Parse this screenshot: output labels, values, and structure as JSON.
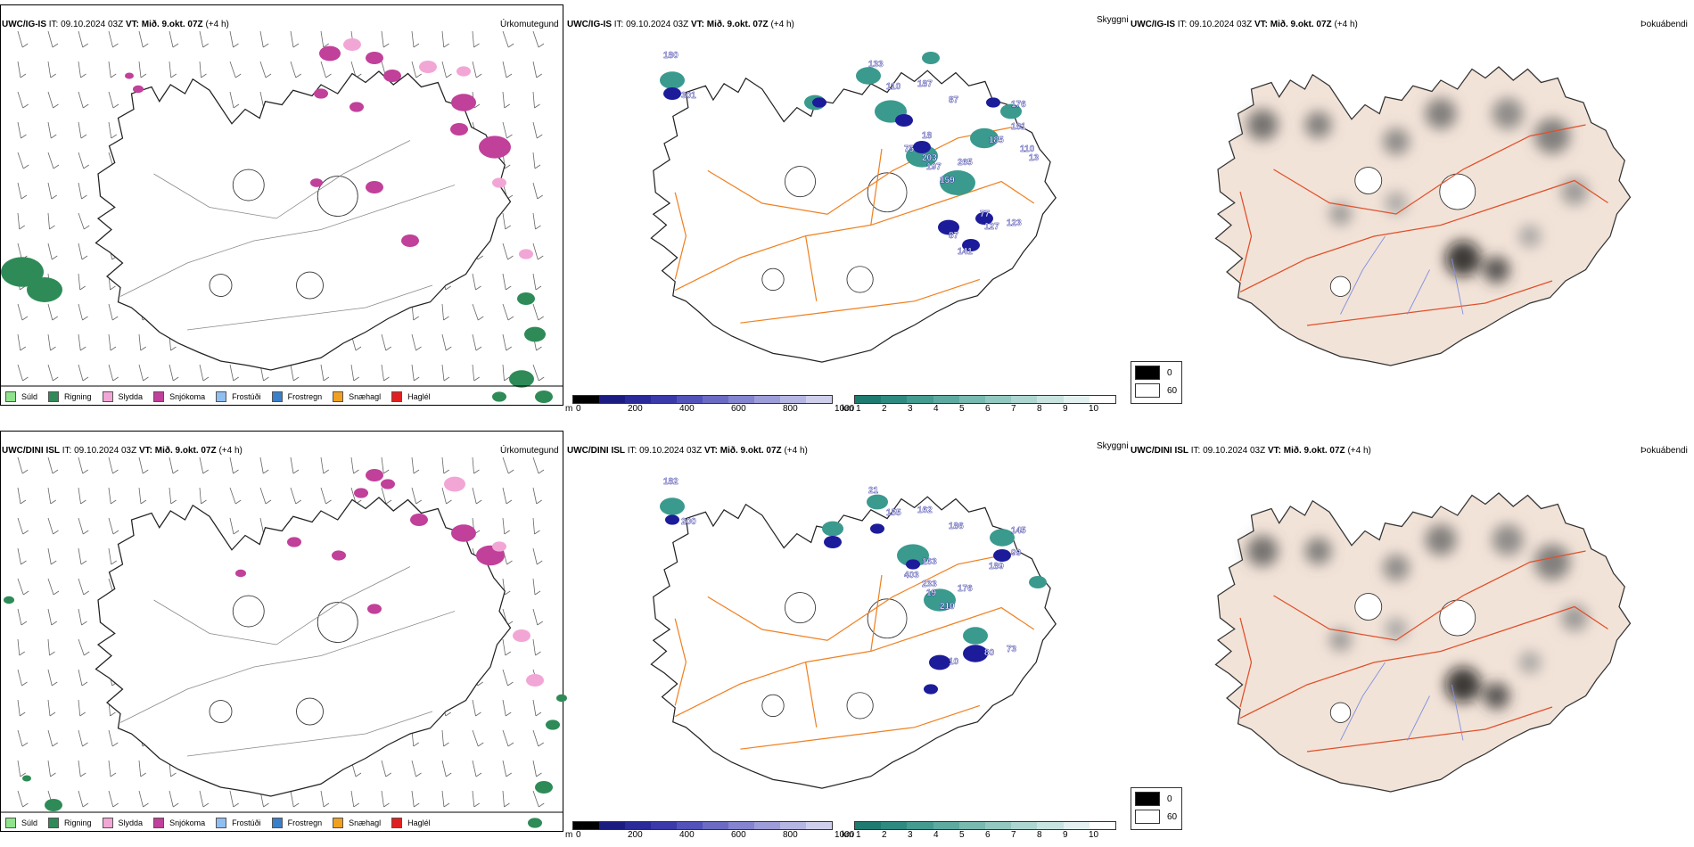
{
  "rows": [
    {
      "p1": {
        "model": "UWC/IG-IS",
        "it_label": "IT:",
        "it": "09.10.2024 03Z",
        "vt_label": "VT:",
        "vt": "Mið. 9.okt. 07Z",
        "lead": "(+4 h)",
        "tag": "Úrkomutegund"
      },
      "p2": {
        "model": "UWC/IG-IS",
        "it_label": "IT:",
        "it": "09.10.2024 03Z",
        "vt_label": "VT:",
        "vt": "Mið. 9.okt. 07Z",
        "lead": "(+4 h)",
        "tag": "Skyggni"
      },
      "p3": {
        "model": "UWC/IG-IS",
        "it_label": "IT:",
        "it": "09.10.2024 03Z",
        "vt_label": "VT:",
        "vt": "Mið. 9.okt. 07Z",
        "lead": "(+4 h)",
        "tag": "Þokuábendi"
      },
      "labels": [
        "180",
        "301",
        "133",
        "110",
        "187",
        "87",
        "18",
        "75",
        "265",
        "159",
        "185",
        "176",
        "181",
        "203",
        "197",
        "127",
        "123",
        "87",
        "141",
        "77",
        "110",
        "13"
      ]
    },
    {
      "p1": {
        "model": "UWC/DINI ISL",
        "it_label": "IT:",
        "it": "09.10.2024 03Z",
        "vt_label": "VT:",
        "vt": "Mið. 9.okt. 07Z",
        "lead": "(+4 h)",
        "tag": "Úrkomutegund"
      },
      "p2": {
        "model": "UWC/DINI ISL",
        "it_label": "IT:",
        "it": "09.10.2024 03Z",
        "vt_label": "VT:",
        "vt": "Mið. 9.okt. 07Z",
        "lead": "(+4 h)",
        "tag": "Skyggni"
      },
      "p3": {
        "model": "UWC/DINI ISL",
        "it_label": "IT:",
        "it": "09.10.2024 03Z",
        "vt_label": "VT:",
        "vt": "Mið. 9.okt. 07Z",
        "lead": "(+4 h)",
        "tag": "Þokuábendi"
      },
      "labels": [
        "182",
        "200",
        "21",
        "155",
        "162",
        "186",
        "163",
        "403",
        "176",
        "210",
        "189",
        "145",
        "99",
        "233",
        "19",
        "80",
        "73",
        "10"
      ]
    }
  ],
  "precip_legend": [
    {
      "label": "Súld",
      "color": "#8fe38a"
    },
    {
      "label": "Rigning",
      "color": "#2e8b57"
    },
    {
      "label": "Slydda",
      "color": "#f2a6d6"
    },
    {
      "label": "Snjókoma",
      "color": "#c0409a"
    },
    {
      "label": "Frostúði",
      "color": "#8fbef0"
    },
    {
      "label": "Frostregn",
      "color": "#3a7fc9"
    },
    {
      "label": "Snæhagl",
      "color": "#f0a020"
    },
    {
      "label": "Haglél",
      "color": "#e02020"
    }
  ],
  "cloud_scale": {
    "unit": "m",
    "ticks": [
      "0",
      "200",
      "400",
      "600",
      "800",
      "1000"
    ],
    "colors": [
      "#000000",
      "#1c1c80",
      "#2a2a98",
      "#3a3aa8",
      "#5252b8",
      "#6b6bc4",
      "#8484cf",
      "#9d9dd9",
      "#b6b6e3",
      "#cfcfec"
    ]
  },
  "vis_scale": {
    "unit": "km",
    "ticks": [
      "1",
      "2",
      "3",
      "4",
      "5",
      "6",
      "7",
      "8",
      "9",
      "10"
    ],
    "colors": [
      "#1f7a70",
      "#2e8a80",
      "#459b90",
      "#5eaaa0",
      "#78b9b0",
      "#93c8c0",
      "#aed6d0",
      "#c8e4e0",
      "#e2f1ef",
      "#ffffff"
    ]
  },
  "fog_legend": [
    {
      "label": "0",
      "color": "#000000"
    },
    {
      "label": "60",
      "color": "#ffffff"
    }
  ],
  "colors": {
    "land": "#f2e3d8",
    "road": "#f08020",
    "road_red": "#e0502a",
    "snow": "#c0409a",
    "rain": "#2e8b57",
    "sleet": "#f2a6d6",
    "cloud": "#1c1c9a",
    "vis": "#3a9a8e"
  }
}
